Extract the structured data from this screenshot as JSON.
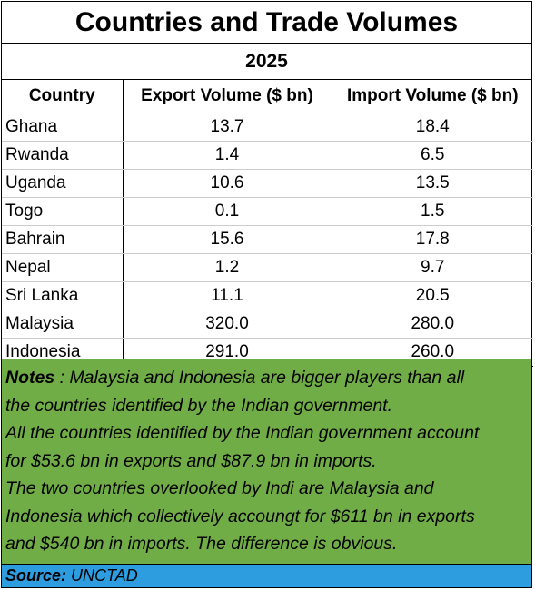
{
  "chart_data": {
    "type": "table",
    "title": "Countries and Trade Volumes",
    "subtitle": "2025",
    "columns": [
      "Country",
      "Export Volume ($ bn)",
      "Import Volume ($ bn)"
    ],
    "rows": [
      [
        "Ghana",
        "13.7",
        "18.4"
      ],
      [
        "Rwanda",
        "1.4",
        "6.5"
      ],
      [
        "Uganda",
        "10.6",
        "13.5"
      ],
      [
        "Togo",
        "0.1",
        "1.5"
      ],
      [
        "Bahrain",
        "15.6",
        "17.8"
      ],
      [
        "Nepal",
        "1.2",
        "9.7"
      ],
      [
        "Sri Lanka",
        "11.1",
        "20.5"
      ],
      [
        "Malaysia",
        "320.0",
        "280.0"
      ],
      [
        "Indonesia",
        "291.0",
        "260.0"
      ]
    ]
  },
  "notes": {
    "label": "Notes",
    "lines": [
      " : Malaysia and Indonesia are bigger players than all",
      "the countries identified by the Indian government.",
      "All the countries identified by the Indian government account",
      "for $53.6  bn in exports and $87.9 bn in imports.",
      "The two countries overlooked by Indi are Malaysia and",
      "Indonesia which collectively accoungt for $611 bn in exports",
      "and $540 bn in imports.  The difference is obvious."
    ]
  },
  "source": {
    "label": "Source:",
    "value": "UNCTAD"
  },
  "colors": {
    "notes_background": "#70ad47",
    "source_background": "#2e9de0"
  }
}
